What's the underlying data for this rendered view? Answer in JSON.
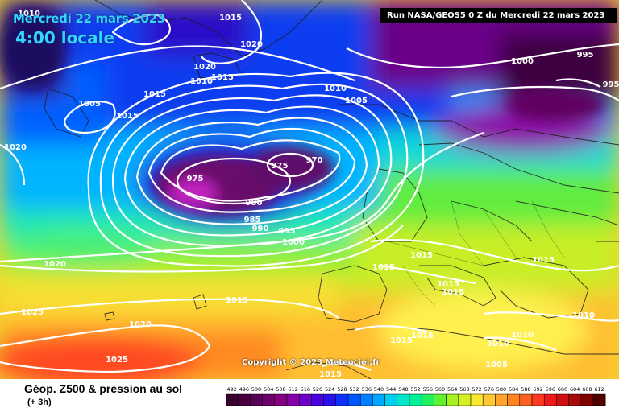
{
  "header": {
    "date": "Mercredi 22 mars 2023",
    "time": "4:00 locale",
    "run_info": "Run NASA/GEOS5 0 Z du Mercredi 22 mars 2023"
  },
  "copyright": "Copyright © 2023 Meteociel.fr",
  "footer": {
    "title": "Géop. Z500 & pression au sol",
    "subtitle": "(+ 3h)"
  },
  "legend": {
    "values": [
      "492",
      "496",
      "500",
      "504",
      "508",
      "512",
      "516",
      "520",
      "524",
      "528",
      "532",
      "536",
      "540",
      "544",
      "548",
      "552",
      "556",
      "560",
      "564",
      "568",
      "572",
      "576",
      "580",
      "584",
      "588",
      "592",
      "596",
      "600",
      "604",
      "608",
      "612"
    ],
    "colors": [
      "#3a002e",
      "#4a0040",
      "#5a0056",
      "#6d006d",
      "#820082",
      "#8a00a8",
      "#6e00c8",
      "#4b00e0",
      "#2a10f0",
      "#1030ff",
      "#0055ff",
      "#0080ff",
      "#00a8ff",
      "#00d0f0",
      "#00e8c8",
      "#00f09a",
      "#20f060",
      "#60f030",
      "#a8f020",
      "#d8f020",
      "#f8e830",
      "#ffc830",
      "#ffa428",
      "#ff8420",
      "#ff6020",
      "#ff3820",
      "#f01818",
      "#d01010",
      "#a80808",
      "#800000",
      "#500000"
    ]
  },
  "isobars": [
    {
      "text": "1010",
      "cls": "H"
    },
    {
      "text": "1015",
      "cls": "H"
    },
    {
      "text": "1020",
      "cls": "H"
    },
    {
      "text": "1020",
      "cls": "H"
    },
    {
      "text": "1010",
      "cls": "H"
    },
    {
      "text": "1015",
      "cls": "H"
    },
    {
      "text": "1015",
      "cls": "H"
    },
    {
      "text": "1005",
      "cls": "L"
    },
    {
      "text": "1015",
      "cls": "H"
    },
    {
      "text": "1010",
      "cls": "H"
    },
    {
      "text": "1005",
      "cls": "L"
    },
    {
      "text": "1020",
      "cls": "H"
    },
    {
      "text": "975",
      "cls": "L"
    },
    {
      "text": "975",
      "cls": "L"
    },
    {
      "text": "970",
      "cls": "L"
    },
    {
      "text": "980",
      "cls": "L"
    },
    {
      "text": "985",
      "cls": "L"
    },
    {
      "text": "990",
      "cls": "L"
    },
    {
      "text": "995",
      "cls": "L"
    },
    {
      "text": "1000",
      "cls": "L"
    },
    {
      "text": "1000",
      "cls": "L"
    },
    {
      "text": "995",
      "cls": "L"
    },
    {
      "text": "995",
      "cls": "L"
    },
    {
      "text": "1020",
      "cls": "H"
    },
    {
      "text": "1015",
      "cls": "H"
    },
    {
      "text": "1015",
      "cls": "H"
    },
    {
      "text": "1015",
      "cls": "H"
    },
    {
      "text": "1015",
      "cls": "H"
    },
    {
      "text": "1015",
      "cls": "H"
    },
    {
      "text": "1025",
      "cls": "H"
    },
    {
      "text": "1020",
      "cls": "H"
    },
    {
      "text": "1025",
      "cls": "H"
    },
    {
      "text": "1015",
      "cls": "H"
    },
    {
      "text": "1015",
      "cls": "H"
    },
    {
      "text": "1010",
      "cls": "H"
    },
    {
      "text": "1010",
      "cls": "H"
    },
    {
      "text": "1010",
      "cls": "H"
    },
    {
      "text": "1005",
      "cls": "L"
    },
    {
      "text": "1015",
      "cls": "H"
    },
    {
      "text": "1015",
      "cls": "H"
    }
  ]
}
